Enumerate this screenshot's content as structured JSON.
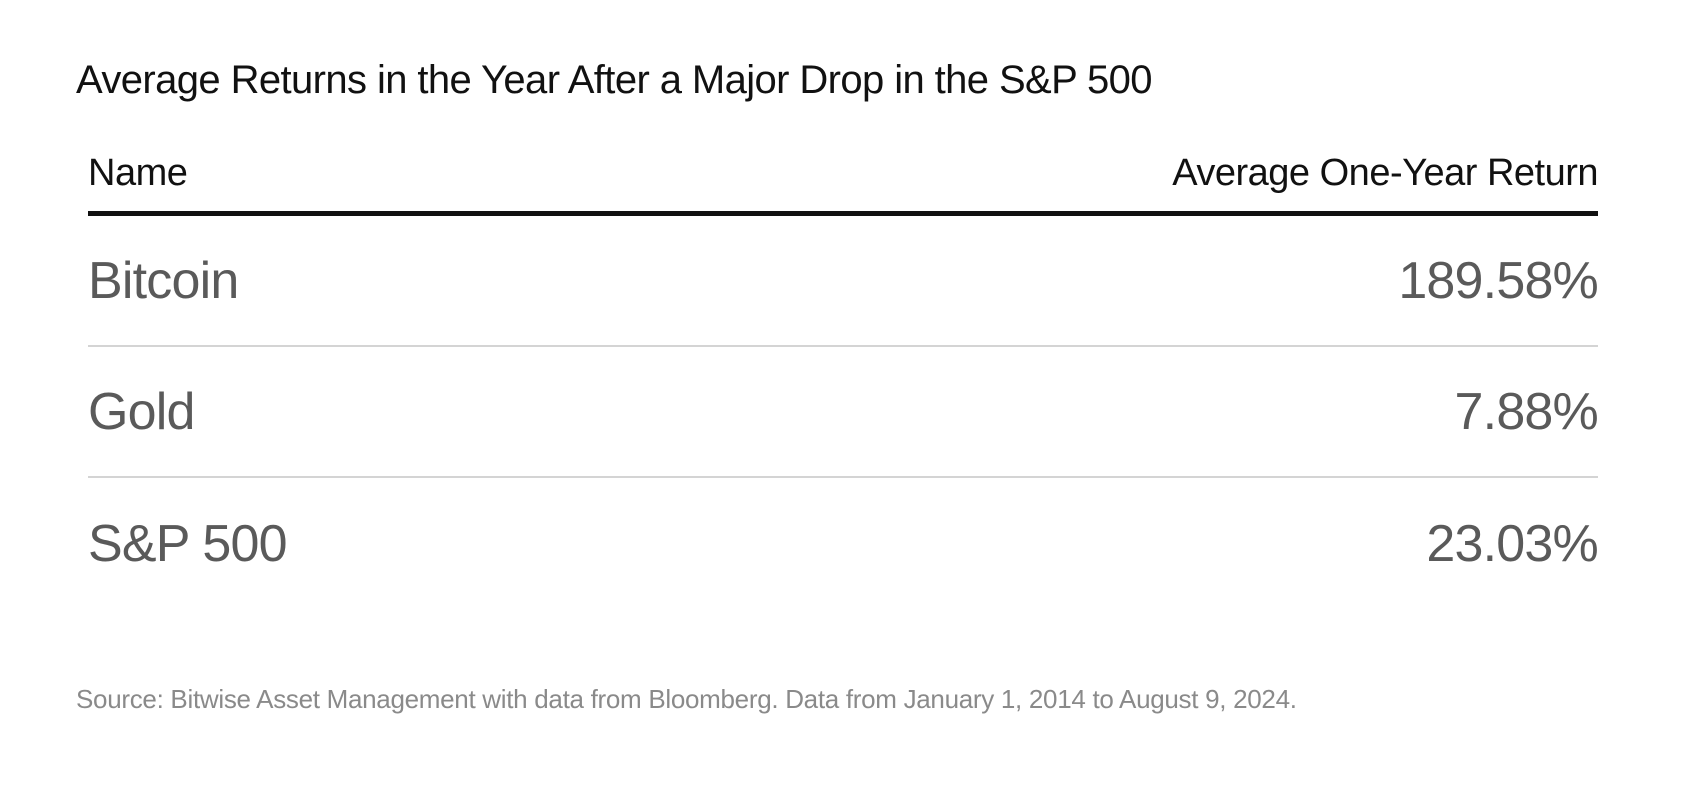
{
  "title": "Average Returns in the Year After a Major Drop in the S&P 500",
  "table": {
    "columns": [
      "Name",
      "Average One-Year Return"
    ],
    "rows": [
      {
        "name": "Bitcoin",
        "value": "189.58%"
      },
      {
        "name": "Gold",
        "value": "7.88%"
      },
      {
        "name": "S&P 500",
        "value": "23.03%"
      }
    ]
  },
  "source": "Source: Bitwise Asset Management with data from Bloomberg. Data from January 1, 2014 to August 9, 2024.",
  "colors": {
    "title": "#111111",
    "header_rule": "#111111",
    "row_text": "#5a5a5a",
    "row_divider": "#d4d4d4",
    "source_text": "#8a8a8a",
    "background": "#ffffff"
  }
}
